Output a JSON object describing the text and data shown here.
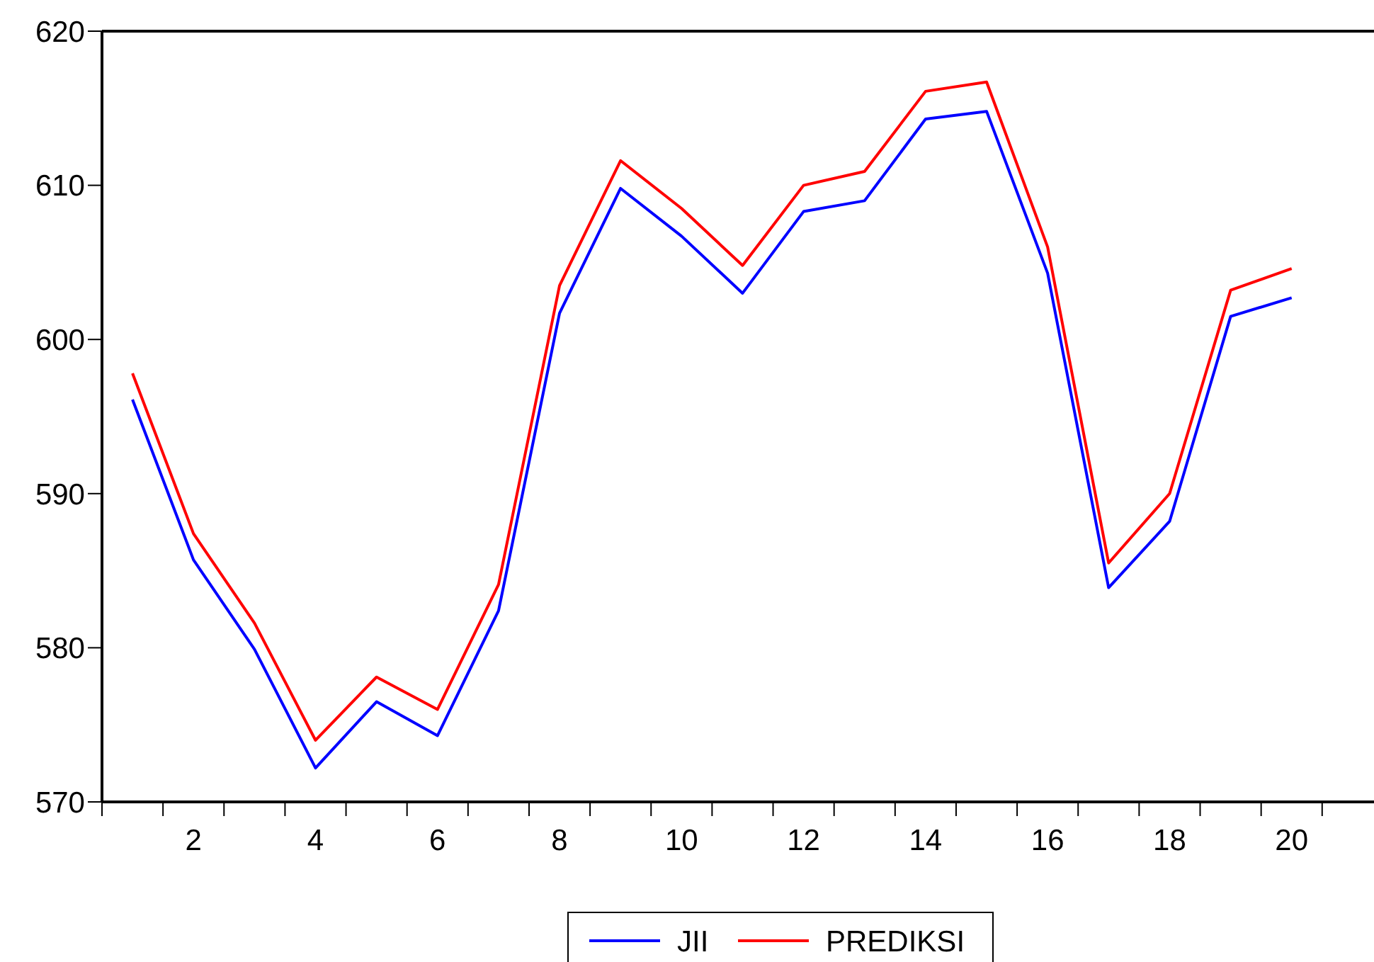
{
  "chart_data": {
    "type": "line",
    "x": [
      1,
      2,
      3,
      4,
      5,
      6,
      7,
      8,
      9,
      10,
      11,
      12,
      13,
      14,
      15,
      16,
      17,
      18,
      19,
      20
    ],
    "series": [
      {
        "name": "JII",
        "color": "#0000ff",
        "values": [
          596.1,
          585.7,
          579.9,
          572.2,
          576.5,
          574.3,
          582.4,
          601.7,
          609.8,
          606.7,
          603.0,
          608.3,
          609.0,
          614.3,
          614.8,
          604.3,
          583.9,
          588.2,
          601.5,
          602.7
        ]
      },
      {
        "name": "PREDIKSI",
        "color": "#ff0000",
        "values": [
          597.8,
          587.4,
          581.6,
          574.0,
          578.1,
          576.0,
          584.1,
          603.5,
          611.6,
          608.5,
          604.8,
          610.0,
          610.9,
          616.1,
          616.7,
          606.0,
          585.5,
          590.0,
          603.2,
          604.6
        ]
      }
    ],
    "xlim": [
      0.5,
      21.35
    ],
    "xticks": [
      2,
      4,
      6,
      8,
      10,
      12,
      14,
      16,
      18,
      20,
      {
        "value": 0.5,
        "label": null
      },
      {
        "value": 1.5,
        "label": null
      },
      {
        "value": 2.5,
        "label": null
      },
      {
        "value": 3.5,
        "label": null
      },
      {
        "value": 4.5,
        "label": null
      },
      {
        "value": 5.5,
        "label": null
      },
      {
        "value": 6.5,
        "label": null
      },
      {
        "value": 7.5,
        "label": null
      },
      {
        "value": 8.5,
        "label": null
      },
      {
        "value": 9.5,
        "label": null
      },
      {
        "value": 10.5,
        "label": null
      },
      {
        "value": 11.5,
        "label": null
      },
      {
        "value": 12.5,
        "label": null
      },
      {
        "value": 13.5,
        "label": null
      },
      {
        "value": 14.5,
        "label": null
      },
      {
        "value": 15.5,
        "label": null
      },
      {
        "value": 16.5,
        "label": null
      },
      {
        "value": 17.5,
        "label": null
      },
      {
        "value": 18.5,
        "label": null
      },
      {
        "value": 19.5,
        "label": null
      },
      {
        "value": 20.5,
        "label": null
      }
    ],
    "ylim": [
      570,
      620
    ],
    "yticks": [
      570,
      580,
      590,
      600,
      610,
      620
    ],
    "grid": false,
    "legend": "bottom",
    "marker": "none",
    "line_style": "solid"
  }
}
